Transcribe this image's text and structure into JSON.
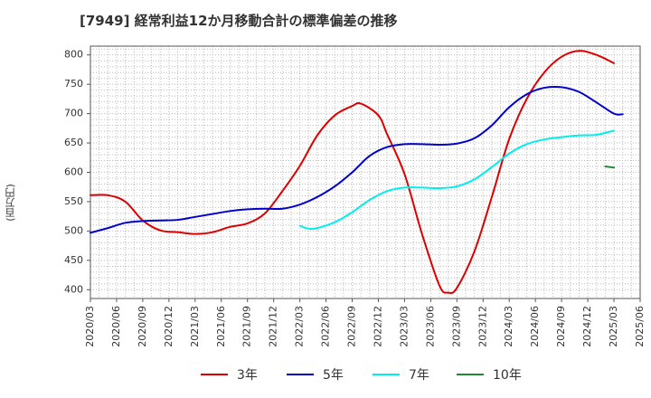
{
  "chart_data": {
    "type": "line",
    "title": "[7949]  経常利益12か月移動合計の標準偏差の推移",
    "xlabel": "",
    "ylabel": "(百万円)",
    "ylim": [
      385,
      815
    ],
    "yticks": [
      400,
      450,
      500,
      550,
      600,
      650,
      700,
      750,
      800
    ],
    "xtick_labels": [
      "2020/03",
      "2020/06",
      "2020/09",
      "2020/12",
      "2021/03",
      "2021/06",
      "2021/09",
      "2021/12",
      "2022/03",
      "2022/06",
      "2022/09",
      "2022/12",
      "2023/03",
      "2023/06",
      "2023/09",
      "2023/12",
      "2024/03",
      "2024/06",
      "2024/09",
      "2024/12",
      "2025/03",
      "2025/06"
    ],
    "grid": true,
    "legend_position": "bottom",
    "series": [
      {
        "name": "3年",
        "color": "#dd0000",
        "points": [
          [
            "2020/03",
            561
          ],
          [
            "2020/05",
            561
          ],
          [
            "2020/07",
            550
          ],
          [
            "2020/09",
            518
          ],
          [
            "2020/11",
            501
          ],
          [
            "2021/01",
            498
          ],
          [
            "2021/03",
            495
          ],
          [
            "2021/05",
            498
          ],
          [
            "2021/07",
            507
          ],
          [
            "2021/09",
            513
          ],
          [
            "2021/11",
            530
          ],
          [
            "2022/01",
            568
          ],
          [
            "2022/03",
            611
          ],
          [
            "2022/05",
            663
          ],
          [
            "2022/07",
            697
          ],
          [
            "2022/09",
            713
          ],
          [
            "2022/10",
            717
          ],
          [
            "2022/12",
            697
          ],
          [
            "2023/01",
            665
          ],
          [
            "2023/03",
            597
          ],
          [
            "2023/05",
            495
          ],
          [
            "2023/07",
            407
          ],
          [
            "2023/08",
            395
          ],
          [
            "2023/09",
            403
          ],
          [
            "2023/11",
            465
          ],
          [
            "2024/01",
            558
          ],
          [
            "2024/03",
            657
          ],
          [
            "2024/05",
            725
          ],
          [
            "2024/07",
            770
          ],
          [
            "2024/09",
            797
          ],
          [
            "2024/11",
            807
          ],
          [
            "2025/01",
            800
          ],
          [
            "2025/03",
            786
          ]
        ]
      },
      {
        "name": "5年",
        "color": "#0000cc",
        "points": [
          [
            "2020/03",
            497
          ],
          [
            "2020/05",
            505
          ],
          [
            "2020/07",
            514
          ],
          [
            "2020/09",
            517
          ],
          [
            "2020/11",
            518
          ],
          [
            "2021/01",
            519
          ],
          [
            "2021/03",
            524
          ],
          [
            "2021/05",
            529
          ],
          [
            "2021/07",
            534
          ],
          [
            "2021/09",
            537
          ],
          [
            "2021/11",
            538
          ],
          [
            "2022/01",
            538
          ],
          [
            "2022/03",
            545
          ],
          [
            "2022/05",
            558
          ],
          [
            "2022/07",
            576
          ],
          [
            "2022/09",
            600
          ],
          [
            "2022/11",
            628
          ],
          [
            "2023/01",
            643
          ],
          [
            "2023/03",
            648
          ],
          [
            "2023/05",
            648
          ],
          [
            "2023/07",
            647
          ],
          [
            "2023/09",
            649
          ],
          [
            "2023/11",
            658
          ],
          [
            "2024/01",
            680
          ],
          [
            "2024/03",
            711
          ],
          [
            "2024/05",
            733
          ],
          [
            "2024/07",
            744
          ],
          [
            "2024/09",
            745
          ],
          [
            "2024/11",
            737
          ],
          [
            "2025/01",
            719
          ],
          [
            "2025/03",
            700
          ],
          [
            "2025/04",
            699
          ]
        ]
      },
      {
        "name": "7年",
        "color": "#00eeee",
        "points": [
          [
            "2022/03",
            509
          ],
          [
            "2022/04",
            504
          ],
          [
            "2022/05",
            505
          ],
          [
            "2022/07",
            515
          ],
          [
            "2022/09",
            532
          ],
          [
            "2022/11",
            553
          ],
          [
            "2023/01",
            568
          ],
          [
            "2023/03",
            574
          ],
          [
            "2023/05",
            574
          ],
          [
            "2023/07",
            573
          ],
          [
            "2023/09",
            576
          ],
          [
            "2023/11",
            588
          ],
          [
            "2024/01",
            609
          ],
          [
            "2024/03",
            632
          ],
          [
            "2024/05",
            648
          ],
          [
            "2024/07",
            656
          ],
          [
            "2024/09",
            660
          ],
          [
            "2024/11",
            663
          ],
          [
            "2025/01",
            664
          ],
          [
            "2025/03",
            671
          ]
        ]
      },
      {
        "name": "10年",
        "color": "#228833",
        "points": [
          [
            "2025/02",
            610
          ],
          [
            "2025/03",
            608
          ]
        ]
      }
    ]
  }
}
